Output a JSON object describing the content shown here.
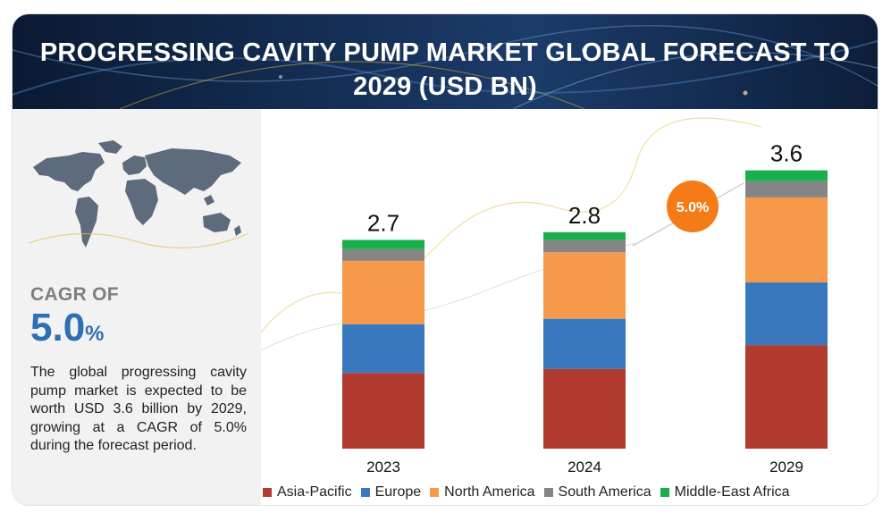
{
  "header": {
    "title": "PROGRESSING CAVITY PUMP MARKET GLOBAL FORECAST TO 2029 (USD BN)"
  },
  "summary": {
    "cagr_label": "CAGR OF",
    "cagr_value": "5.0",
    "cagr_unit": "%",
    "description": "The global progressing cavity pump market is expected to be worth USD 3.6 billion by 2029, growing at a CAGR of 5.0% during the forecast period."
  },
  "colors": {
    "asia_pacific": "#b23b2f",
    "europe": "#3a78bd",
    "north_america": "#f7994a",
    "south_america": "#858585",
    "middle_east_africa": "#18b04c",
    "cagr_badge": "#f47b16",
    "cagr_text": "#2f6fb4"
  },
  "chart_data": {
    "type": "bar",
    "stacked": true,
    "categories": [
      "2023",
      "2024",
      "2029"
    ],
    "totals": [
      "2.7",
      "2.8",
      "3.6"
    ],
    "series": [
      {
        "name": "Asia-Pacific",
        "values": [
          0.98,
          1.03,
          1.34
        ]
      },
      {
        "name": "Europe",
        "values": [
          0.63,
          0.65,
          0.81
        ]
      },
      {
        "name": "North America",
        "values": [
          0.82,
          0.86,
          1.1
        ]
      },
      {
        "name": "South America",
        "values": [
          0.15,
          0.16,
          0.21
        ]
      },
      {
        "name": "Middle-East Africa",
        "values": [
          0.12,
          0.1,
          0.14
        ]
      }
    ],
    "cagr_badge": "5.0%",
    "legend_position": "bottom",
    "grid": false
  }
}
